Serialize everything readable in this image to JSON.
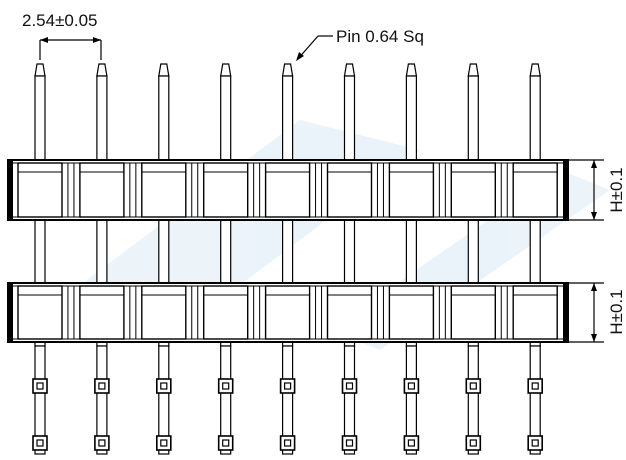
{
  "diagram": {
    "pitch_label": "2.54±0.05",
    "pin_label": "Pin 0.64 Sq",
    "height_label_upper": "H±0.1",
    "height_label_lower": "H±0.1",
    "pin_count": 9,
    "row_count": 2,
    "colors": {
      "line": "#000000",
      "body_fill": "#ffffff",
      "watermark": "#dcebf6"
    }
  }
}
